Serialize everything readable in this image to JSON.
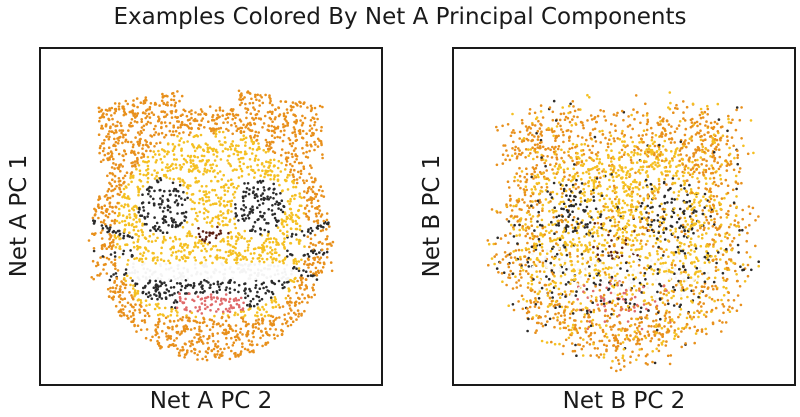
{
  "chart_data": {
    "type": "scatter",
    "title": "Examples Colored By Net A Principal Components",
    "palette": {
      "orange": "#e8901c",
      "yellow": "#f5c022",
      "dark": "#2b2b2b",
      "white": "#f4f4f4",
      "brown": "#5a1f12",
      "pink": "#e06a6a"
    },
    "panels": [
      {
        "xlabel": "Net A PC 2",
        "ylabel": "Net A PC 1",
        "xlim": [
          0,
          1
        ],
        "ylim": [
          0,
          1
        ],
        "ticks": "none",
        "grid": false,
        "depicts": "cat-face",
        "clarity": 1.0
      },
      {
        "xlabel": "Net B PC 2",
        "ylabel": "Net B PC 1",
        "xlim": [
          0,
          1
        ],
        "ylim": [
          0,
          1
        ],
        "ticks": "none",
        "grid": false,
        "depicts": "cat-face",
        "clarity": 0.35
      }
    ]
  }
}
